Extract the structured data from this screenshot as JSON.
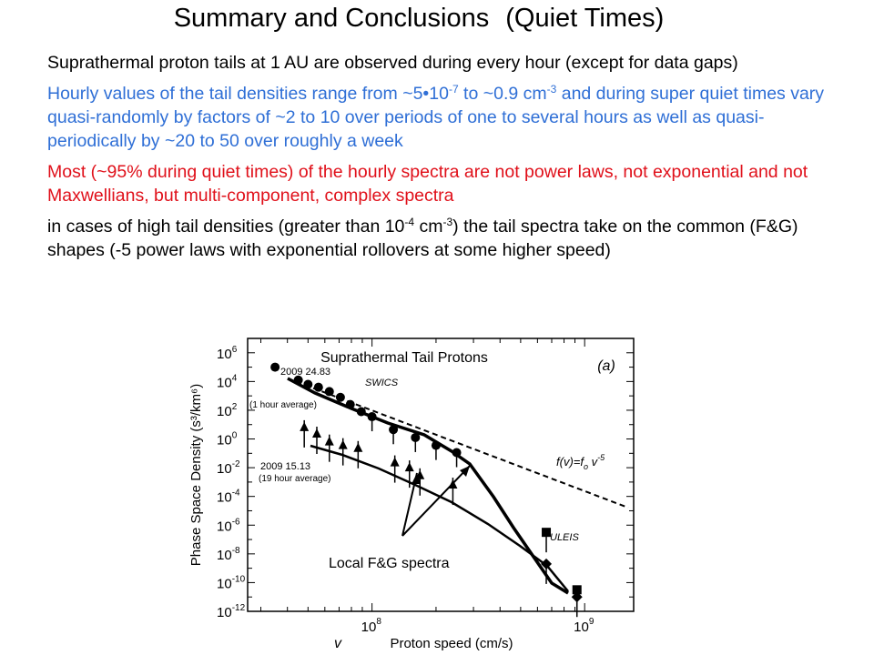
{
  "slide": {
    "title_main": "Summary and Conclusions",
    "title_sub": "(Quiet Times)"
  },
  "bullets": {
    "b1": "Suprathermal proton tails at 1 AU are observed during every hour (except for data gaps)",
    "b2": {
      "t1": "Hourly values of the tail densities range from ~5•10",
      "s1": "-7",
      "t2": " to ~0.9 cm",
      "s2": "-3",
      "t3": " and during super quiet times vary quasi-randomly by factors of ~2 to 10 over periods of one to several hours as well as quasi-periodically by ~20 to 50 over roughly a week"
    },
    "b3": "Most (~95% during quiet times) of the hourly spectra are not power laws, not exponential and not Maxwellians, but multi-component, complex spectra",
    "b4": {
      "t1": "in cases of high tail densities (greater than 10",
      "s1": "-4",
      "t2": " cm",
      "s2": "-3",
      "t3": ") the tail spectra take on the common (F&G) shapes (-5 power laws with exponential rollovers at some higher speed)"
    }
  },
  "colors": {
    "bullet1": "#000000",
    "bullet2": "#2F6FD6",
    "bullet3": "#E0101A",
    "bullet4": "#000000"
  },
  "chart_data": {
    "type": "scatter",
    "title": "Suprathermal Tail Protons",
    "panel_label": "(a)",
    "xlabel_symbol": "v",
    "xlabel": "Proton speed (cm/s)",
    "ylabel": "Phase Space Density (s³/km⁶)",
    "x_log": true,
    "y_log": true,
    "xlim": [
      26000000.0,
      1700000000.0
    ],
    "ylim_exp": [
      -12,
      7
    ],
    "x_tick_labels": [
      {
        "base": "10",
        "exp": "8"
      },
      {
        "base": "10",
        "exp": "9"
      }
    ],
    "y_tick_labels": [
      {
        "base": "10",
        "exp": "6"
      },
      {
        "base": "10",
        "exp": "4"
      },
      {
        "base": "10",
        "exp": "2"
      },
      {
        "base": "10",
        "exp": "0"
      },
      {
        "base": "10",
        "exp": "-2"
      },
      {
        "base": "10",
        "exp": "-4"
      },
      {
        "base": "10",
        "exp": "-6"
      },
      {
        "base": "10",
        "exp": "-8"
      },
      {
        "base": "10",
        "exp": "-10"
      },
      {
        "base": "10",
        "exp": "-12"
      }
    ],
    "series": [
      {
        "name": "2009 24.83",
        "note": "(1 hour average)",
        "instrument": "SWICS",
        "points": [
          [
            35000000.0,
            5.0
          ],
          [
            45000000.0,
            4.1
          ],
          [
            50000000.0,
            3.8
          ],
          [
            56000000.0,
            3.6
          ],
          [
            63000000.0,
            3.3
          ],
          [
            71000000.0,
            2.9
          ],
          [
            79000000.0,
            2.4
          ],
          [
            89000000.0,
            1.9
          ],
          [
            100000000.0,
            1.55
          ],
          [
            126000000.0,
            0.65
          ],
          [
            160000000.0,
            0.1
          ],
          [
            200000000.0,
            -0.45
          ],
          [
            250000000.0,
            -0.95
          ]
        ]
      },
      {
        "name": "2009 15.13",
        "note": "(19 hour average)",
        "points": [
          [
            48000000.0,
            0.8
          ],
          [
            55000000.0,
            0.35
          ],
          [
            63000000.0,
            -0.2
          ],
          [
            73000000.0,
            -0.45
          ],
          [
            86000000.0,
            -0.65
          ],
          [
            128000000.0,
            -1.65
          ],
          [
            150000000.0,
            -2.0
          ],
          [
            168000000.0,
            -2.55
          ],
          [
            240000000.0,
            -3.2
          ]
        ]
      },
      {
        "name": "ULEIS",
        "instrument": "ULEIS",
        "points": [
          [
            660000000.0,
            -6.5
          ],
          [
            660000000.0,
            -8.7
          ],
          [
            920000000.0,
            -10.5
          ],
          [
            920000000.0,
            -11.0
          ]
        ]
      }
    ],
    "fit_label": "f(v)=fₒv⁻⁵",
    "fit_label_parts": {
      "base": "f(v)=f",
      "sub": "o",
      "mid": " v",
      "exp": "-5"
    },
    "annotation": "Local F&G spectra"
  }
}
